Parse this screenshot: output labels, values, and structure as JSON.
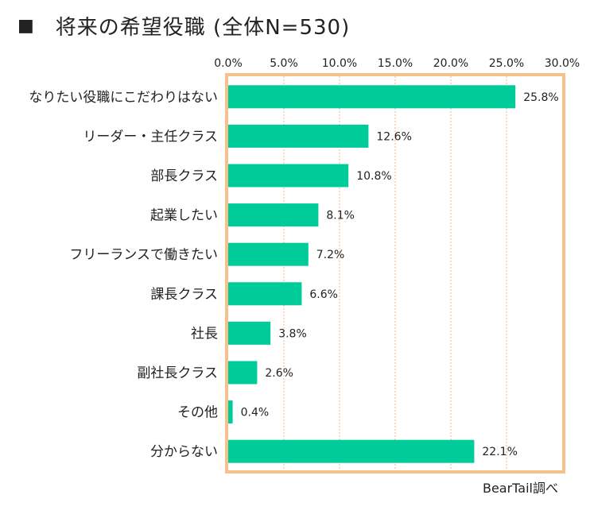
{
  "header": {
    "marker": "■",
    "title": "将来の希望役職 (全体N=530)"
  },
  "footer": {
    "source": "BearTail調べ"
  },
  "colors": {
    "bar": "#00cc99",
    "frame": "#f8c08a",
    "grid": "#f4b183",
    "text": "#222222"
  },
  "chart_data": {
    "type": "bar",
    "orientation": "horizontal",
    "categories": [
      "なりたい役職にこだわりはない",
      "リーダー・主任クラス",
      "部長クラス",
      "起業したい",
      "フリーランスで働きたい",
      "課長クラス",
      "社長",
      "副社長クラス",
      "その他",
      "分からない"
    ],
    "values": [
      25.8,
      12.6,
      10.8,
      8.1,
      7.2,
      6.6,
      3.8,
      2.6,
      0.4,
      22.1
    ],
    "value_labels": [
      "25.8%",
      "12.6%",
      "10.8%",
      "8.1%",
      "7.2%",
      "6.6%",
      "3.8%",
      "2.6%",
      "0.4%",
      "22.1%"
    ],
    "x_ticks": [
      0,
      5,
      10,
      15,
      20,
      25,
      30
    ],
    "x_tick_labels": [
      "0.0%",
      "5.0%",
      "10.0%",
      "15.0%",
      "20.0%",
      "25.0%",
      "30.0%"
    ],
    "xlim": [
      0,
      30
    ],
    "x_axis_position": "top",
    "grid": true,
    "legend": "none"
  }
}
